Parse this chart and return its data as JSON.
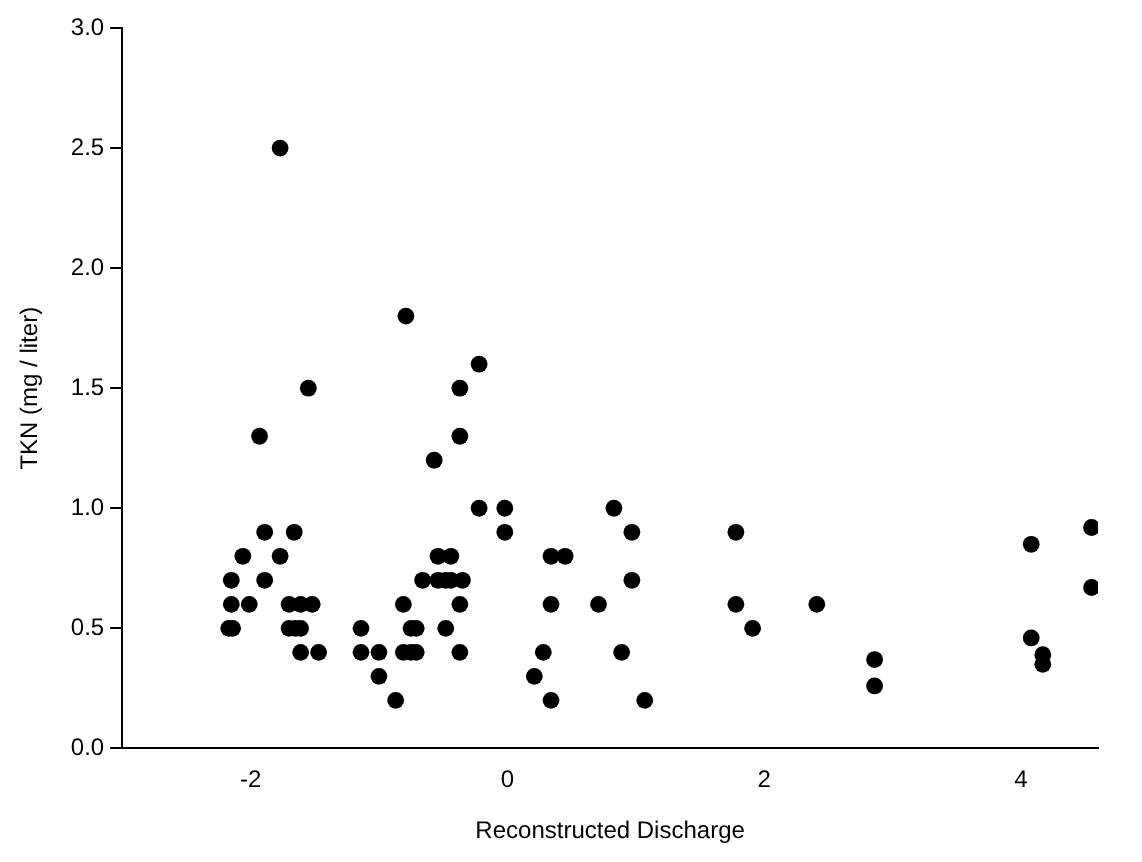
{
  "chart_data": {
    "type": "scatter",
    "xlabel": "Reconstructed Discharge",
    "ylabel": "TKN (mg / liter)",
    "series": [
      {
        "color": "#000000",
        "x": [
          -1.77,
          -0.79,
          -0.22,
          -1.55,
          -0.37,
          -1.93,
          -0.37,
          -0.57,
          -0.22,
          -0.02,
          -0.02,
          -1.89,
          -1.66,
          -2.06,
          -1.77,
          -2.15,
          -1.89,
          -2.15,
          -2.01,
          -1.7,
          -1.61,
          -1.52,
          -2.17,
          -2.14,
          -1.7,
          -1.65,
          -1.61,
          -1.61,
          -1.47,
          -1.14,
          -1.14,
          -1.0,
          -1.0,
          -0.87,
          -0.81,
          -0.81,
          -0.75,
          -0.71,
          -0.75,
          -0.71,
          -0.66,
          -0.54,
          -0.44,
          -0.54,
          -0.48,
          -0.44,
          -0.35,
          -0.37,
          -0.48,
          -0.37,
          0.34,
          0.45,
          0.34,
          0.71,
          0.28,
          0.21,
          0.34,
          0.83,
          0.97,
          0.97,
          0.89,
          1.07,
          1.78,
          1.78,
          1.91,
          2.41,
          2.86,
          2.86,
          4.08,
          4.08,
          4.17,
          4.17,
          4.55,
          4.55
        ],
        "values": [
          2.5,
          1.8,
          1.6,
          1.5,
          1.5,
          1.3,
          1.3,
          1.2,
          1.0,
          1.0,
          0.9,
          0.9,
          0.9,
          0.8,
          0.8,
          0.7,
          0.7,
          0.6,
          0.6,
          0.6,
          0.6,
          0.6,
          0.5,
          0.5,
          0.5,
          0.5,
          0.5,
          0.4,
          0.4,
          0.5,
          0.4,
          0.4,
          0.3,
          0.2,
          0.6,
          0.4,
          0.4,
          0.4,
          0.5,
          0.5,
          0.7,
          0.8,
          0.8,
          0.7,
          0.7,
          0.7,
          0.7,
          0.6,
          0.5,
          0.4,
          0.8,
          0.8,
          0.6,
          0.6,
          0.4,
          0.3,
          0.2,
          1.0,
          0.9,
          0.7,
          0.4,
          0.2,
          0.9,
          0.6,
          0.5,
          0.6,
          0.37,
          0.26,
          0.85,
          0.46,
          0.39,
          0.35,
          0.92,
          0.67
        ]
      }
    ],
    "xlim": [
      -3,
      4.6
    ],
    "xticks": [
      -2,
      0,
      2,
      4
    ],
    "ylim": [
      0,
      3
    ],
    "yticks": [
      {
        "value": 0,
        "label": "0.0"
      },
      {
        "value": 0.5,
        "label": "0.5"
      },
      {
        "value": 1,
        "label": "1.0"
      },
      {
        "value": 1.5,
        "label": "1.5"
      },
      {
        "value": 2,
        "label": "2.0"
      },
      {
        "value": 2.5,
        "label": "2.5"
      },
      {
        "value": 3,
        "label": "3.0"
      }
    ],
    "grid": false,
    "legend": false,
    "marker": "circle"
  }
}
